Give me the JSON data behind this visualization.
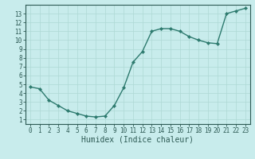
{
  "x": [
    0,
    1,
    2,
    3,
    4,
    5,
    6,
    7,
    8,
    9,
    10,
    11,
    12,
    13,
    14,
    15,
    16,
    17,
    18,
    19,
    20,
    21,
    22,
    23
  ],
  "y": [
    4.7,
    4.5,
    3.2,
    2.6,
    2.0,
    1.7,
    1.4,
    1.3,
    1.4,
    2.6,
    4.6,
    7.5,
    8.7,
    11.0,
    11.3,
    11.3,
    11.0,
    10.4,
    10.0,
    9.7,
    9.6,
    13.0,
    13.3,
    13.6
  ],
  "line_color": "#2d7a6e",
  "marker": "D",
  "marker_size": 2.2,
  "line_width": 1.0,
  "bg_color": "#c8ecec",
  "grid_color": "#aed8d4",
  "xlabel": "Humidex (Indice chaleur)",
  "xlim": [
    -0.5,
    23.5
  ],
  "ylim": [
    0.5,
    14.0
  ],
  "xticks": [
    0,
    1,
    2,
    3,
    4,
    5,
    6,
    7,
    8,
    9,
    10,
    11,
    12,
    13,
    14,
    15,
    16,
    17,
    18,
    19,
    20,
    21,
    22,
    23
  ],
  "yticks": [
    1,
    2,
    3,
    4,
    5,
    6,
    7,
    8,
    9,
    10,
    11,
    12,
    13
  ],
  "tick_label_fontsize": 5.5,
  "xlabel_fontsize": 7.0,
  "tick_color": "#2d5a54",
  "axis_color": "#2d5a54",
  "bottom_bar_color": "#4a8a80"
}
